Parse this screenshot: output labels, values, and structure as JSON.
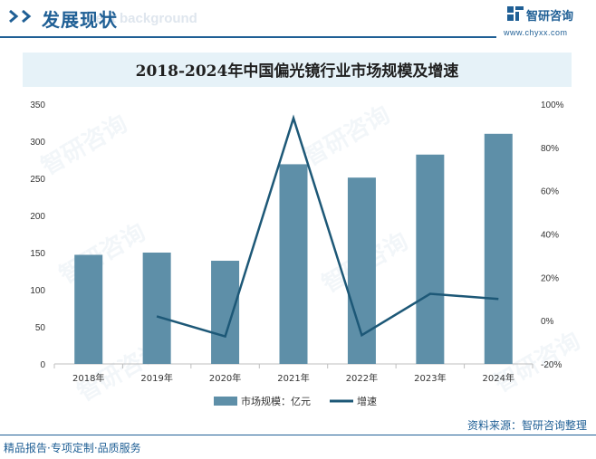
{
  "header": {
    "title": "发展现状",
    "watermark": "ment background",
    "logo_name": "智研咨询",
    "logo_url": "www.chyxx.com"
  },
  "chart_data": {
    "type": "bar+line",
    "title": "2018-2024年中国偏光镜行业市场规模及增速",
    "categories": [
      "2018年",
      "2019年",
      "2020年",
      "2021年",
      "2022年",
      "2023年",
      "2024年"
    ],
    "series": [
      {
        "name": "市场规模：亿元",
        "type": "bar",
        "axis": "left",
        "values": [
          147,
          150,
          139,
          269,
          251,
          282,
          310
        ]
      },
      {
        "name": "增速",
        "type": "line",
        "axis": "right",
        "values": [
          null,
          2,
          -7.3,
          93.5,
          -6.7,
          12.4,
          10
        ]
      }
    ],
    "left_axis": {
      "ylim": [
        0,
        350
      ],
      "ticks": [
        "0",
        "50",
        "100",
        "150",
        "200",
        "250",
        "300",
        "350"
      ]
    },
    "right_axis": {
      "ylim": [
        -20,
        100
      ],
      "ticks": [
        "-20%",
        "0%",
        "20%",
        "40%",
        "60%",
        "80%",
        "100%"
      ]
    },
    "legend_position": "bottom-center",
    "colors": {
      "bar": "#5e8fa8",
      "line": "#1d5877"
    }
  },
  "footer": {
    "source": "资料来源：智研咨询整理",
    "slogan": "精品报告·专项定制·品质服务"
  },
  "watermark_text": "智研咨询"
}
